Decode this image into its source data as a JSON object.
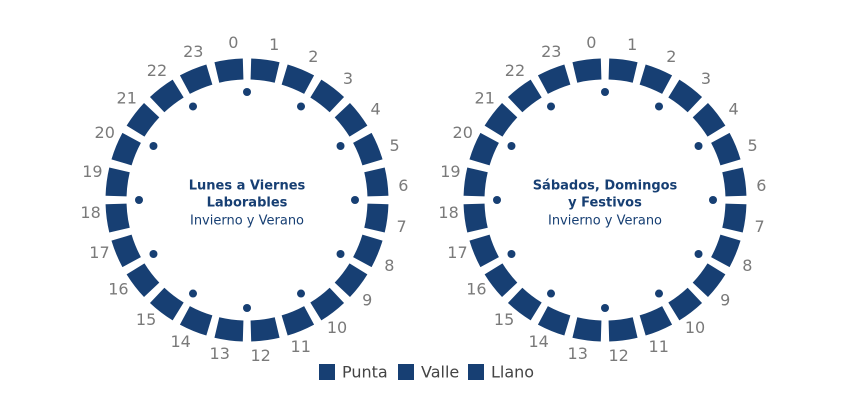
{
  "dials": [
    {
      "title": [
        "Lunes a Viernes",
        "Laborables"
      ],
      "subtitle": "Invierno y Verano",
      "hours": [
        "0",
        "1",
        "2",
        "3",
        "4",
        "5",
        "6",
        "7",
        "8",
        "9",
        "10",
        "11",
        "12",
        "13",
        "14",
        "15",
        "16",
        "17",
        "18",
        "19",
        "20",
        "21",
        "22",
        "23"
      ]
    },
    {
      "title": [
        "Sábados, Domingos",
        "y Festivos"
      ],
      "subtitle": "Invierno y Verano",
      "hours": [
        "0",
        "1",
        "2",
        "3",
        "4",
        "5",
        "6",
        "7",
        "8",
        "9",
        "10",
        "11",
        "12",
        "13",
        "14",
        "15",
        "16",
        "17",
        "18",
        "19",
        "20",
        "21",
        "22",
        "23"
      ]
    }
  ],
  "legend": [
    "Punta",
    "Valle",
    "Llano"
  ]
}
